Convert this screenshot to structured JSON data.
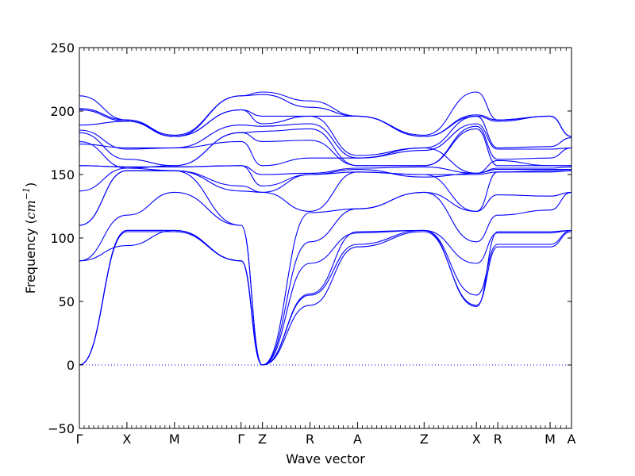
{
  "chart_data": {
    "type": "line",
    "title": "",
    "xlabel": "Wave vector",
    "ylabel": {
      "prefix": "Frequency (",
      "unit": "cm",
      "exponent": "−1",
      "suffix": ")"
    },
    "ylim": [
      -50,
      250
    ],
    "yticks": [
      -50,
      0,
      50,
      100,
      150,
      200,
      250
    ],
    "ytick_labels": [
      "−50",
      "0",
      "50",
      "100",
      "150",
      "200",
      "250"
    ],
    "xlim": [
      0,
      10.35
    ],
    "high_symmetry_points": [
      {
        "label": "Γ",
        "x": 0.0
      },
      {
        "label": "X",
        "x": 1.0
      },
      {
        "label": "M",
        "x": 2.0
      },
      {
        "label": "Γ",
        "x": 3.4
      },
      {
        "label": "Z",
        "x": 3.85
      },
      {
        "label": "R",
        "x": 4.85
      },
      {
        "label": "A",
        "x": 5.85
      },
      {
        "label": "Z",
        "x": 7.25
      },
      {
        "label": "X",
        "x": 8.35
      },
      {
        "label": "R",
        "x": 8.8
      },
      {
        "label": "M",
        "x": 9.9
      },
      {
        "label": "A",
        "x": 10.35
      }
    ],
    "zero_line": true,
    "line_color": "#0000ff",
    "series": [
      {
        "values": [
          0,
          105,
          105,
          82,
          0,
          47,
          93,
          105,
          47,
          93,
          93,
          105,
          105
        ]
      },
      {
        "values": [
          0,
          106,
          106,
          82,
          0,
          55,
          95,
          106,
          55,
          95,
          95,
          106,
          106
        ]
      },
      {
        "values": [
          0,
          106,
          106,
          82,
          0,
          80,
          104,
          106,
          80,
          104,
          104,
          106,
          106
        ]
      },
      {
        "values": [
          82,
          94,
          106,
          82,
          0,
          56,
          105,
          106,
          46,
          105,
          105,
          106,
          106
        ]
      },
      {
        "values": [
          82,
          118,
          136,
          110,
          0,
          97,
          123,
          136,
          97,
          118,
          122,
          136,
          136
        ]
      },
      {
        "values": [
          110,
          153,
          153,
          110,
          0,
          120,
          123,
          136,
          121,
          134,
          133,
          136,
          136
        ]
      },
      {
        "values": [
          110,
          153,
          153,
          137,
          136,
          121,
          152,
          150,
          121,
          152,
          152,
          153,
          153
        ]
      },
      {
        "values": [
          137,
          155,
          153,
          141,
          136,
          150,
          152,
          150,
          150,
          152,
          153,
          153,
          153
        ]
      },
      {
        "values": [
          157,
          156,
          156,
          157,
          141,
          150,
          154,
          148,
          151,
          154,
          154,
          154,
          154
        ]
      },
      {
        "values": [
          157,
          156,
          156,
          157,
          150,
          151,
          155,
          156,
          151,
          155,
          155,
          156,
          156
        ]
      },
      {
        "values": [
          174,
          171,
          171,
          176,
          157,
          163,
          163,
          171,
          151,
          161,
          157,
          157,
          157
        ]
      },
      {
        "values": [
          176,
          155,
          157,
          183,
          176,
          177,
          157,
          157,
          186,
          157,
          157,
          157,
          157
        ]
      },
      {
        "values": [
          183,
          162,
          157,
          183,
          184,
          186,
          157,
          157,
          188,
          162,
          163,
          171,
          171
        ]
      },
      {
        "values": [
          185,
          170,
          171,
          189,
          188,
          190,
          163,
          169,
          190,
          170,
          170,
          171,
          171
        ]
      },
      {
        "values": [
          189,
          192,
          180,
          201,
          190,
          196,
          165,
          171,
          196,
          171,
          172,
          179,
          179
        ]
      },
      {
        "values": [
          201,
          192,
          180,
          201,
          196,
          196,
          196,
          180,
          196,
          192,
          196,
          180,
          180
        ]
      },
      {
        "values": [
          202,
          193,
          180,
          212,
          213,
          203,
          196,
          180,
          197,
          193,
          196,
          180,
          180
        ]
      },
      {
        "values": [
          212,
          193,
          181,
          212,
          215,
          208,
          196,
          181,
          215,
          193,
          196,
          180,
          180
        ]
      }
    ]
  }
}
